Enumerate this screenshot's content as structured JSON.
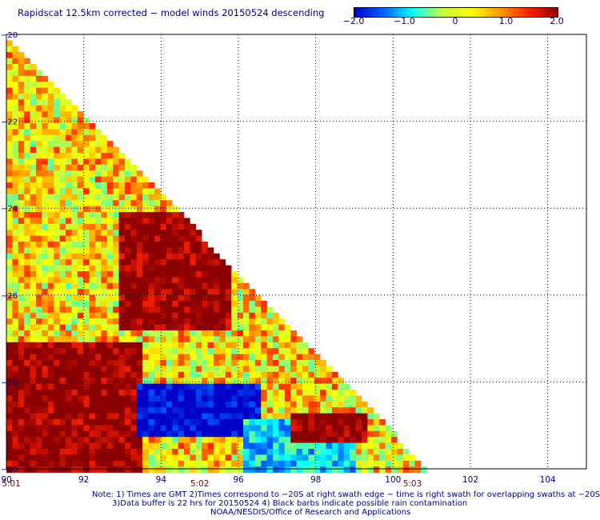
{
  "title": "Rapidscat 12.5km corrected − model winds 20150524 descending",
  "colorbar": {
    "ticks": [
      "−2.0",
      "−1.0",
      "0",
      "1.0",
      "2.0"
    ],
    "tick_values": [
      -2.0,
      -1.0,
      0,
      1.0,
      2.0
    ],
    "range": [
      -2.0,
      2.0
    ],
    "colors": [
      "#0000c8",
      "#0060ff",
      "#00ffff",
      "#c0ff40",
      "#ffff00",
      "#ffa000",
      "#ff2000",
      "#8b0000"
    ]
  },
  "chart_data": {
    "type": "heatmap",
    "title": "Rapidscat 12.5km corrected − model winds 20150524 descending",
    "xlabel": "",
    "ylabel": "",
    "xlim": [
      90,
      105
    ],
    "ylim": [
      -30,
      -20
    ],
    "x_ticks": [
      90,
      92,
      94,
      96,
      98,
      100,
      102,
      104
    ],
    "x_tick_labels": [
      "90",
      "92",
      "94",
      "96",
      "98",
      "100",
      "102",
      "104"
    ],
    "y_ticks": [
      -20,
      -22,
      -24,
      -26,
      -28,
      -30
    ],
    "y_tick_labels": [
      "−20",
      "−22",
      "−24",
      "−26",
      "−28",
      "−30"
    ],
    "grid": "dotted",
    "swath_edge": {
      "lon_at_top": 90.0,
      "lat_top": -20,
      "lon_at_bottom": 100.9,
      "lat_bottom": -30
    },
    "regions": [
      {
        "name": "",
        "lon": [
          92.8,
          95.7
        ],
        "lat": [
          -24.0,
          -26.8
        ],
        "value": 2.0
      },
      {
        "name": "",
        "lon": [
          90.0,
          93.5
        ],
        "lat": [
          -27.0,
          -30.0
        ],
        "value": 2.0
      },
      {
        "name": "",
        "lon": [
          93.3,
          96.5
        ],
        "lat": [
          -28.0,
          -29.2
        ],
        "value": -2.0
      },
      {
        "name": "",
        "lon": [
          96.1,
          98.9
        ],
        "lat": [
          -28.8,
          -30.0
        ],
        "value": -1.0
      },
      {
        "name": "",
        "lon": [
          97.2,
          99.2
        ],
        "lat": [
          -28.6,
          -29.4
        ],
        "value": 2.0
      }
    ],
    "time_labels": [
      {
        "text": "5:01",
        "lon": 90.0
      },
      {
        "text": "5:02",
        "lon": 95.0
      },
      {
        "text": "5:03",
        "lon": 100.5
      }
    ]
  },
  "notes": [
    "Note: 1) Times are GMT 2)Times correspond to −20S at right swath edge − time is right swath for overlapping swaths at −20S",
    "3)Data buffer is 22 hrs for 20150524 4) Black barbs indicate possible rain contamination",
    "NOAA/NESDIS/Office of Research and Applications"
  ]
}
